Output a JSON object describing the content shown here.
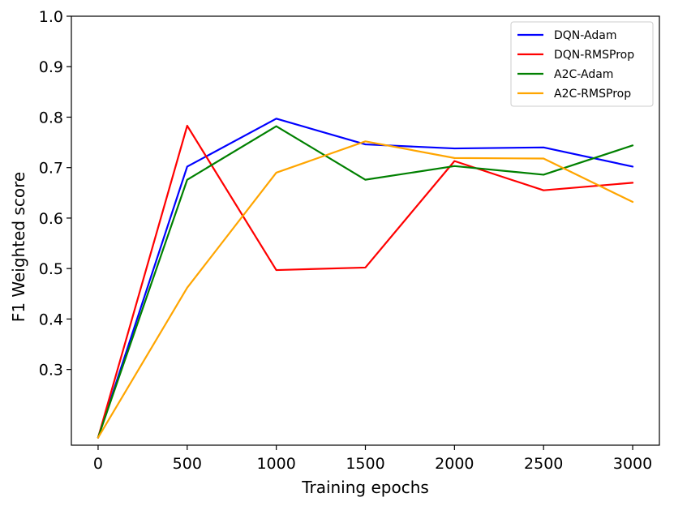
{
  "chart_data": {
    "type": "line",
    "xlabel": "Training epochs",
    "ylabel": "F1 Weighted score",
    "x": [
      0,
      500,
      1000,
      1500,
      2000,
      2500,
      3000
    ],
    "xlim": [
      -150,
      3150
    ],
    "ylim": [
      0.15,
      1.0
    ],
    "xticks": [
      0,
      500,
      1000,
      1500,
      2000,
      2500,
      3000
    ],
    "yticks": [
      0.3,
      0.4,
      0.5,
      0.6,
      0.7,
      0.8,
      0.9,
      1.0
    ],
    "xtick_labels": [
      "0",
      "500",
      "1000",
      "1500",
      "2000",
      "2500",
      "3000"
    ],
    "ytick_labels": [
      "0.3",
      "0.4",
      "0.5",
      "0.6",
      "0.7",
      "0.8",
      "0.9",
      "1.0"
    ],
    "grid": false,
    "legend_position": "top-right",
    "series": [
      {
        "name": "DQN-Adam",
        "color": "#0000ff",
        "values": [
          0.165,
          0.702,
          0.797,
          0.746,
          0.738,
          0.74,
          0.702
        ]
      },
      {
        "name": "DQN-RMSProp",
        "color": "#ff0000",
        "values": [
          0.165,
          0.783,
          0.497,
          0.502,
          0.713,
          0.655,
          0.67
        ]
      },
      {
        "name": "A2C-Adam",
        "color": "#008000",
        "values": [
          0.165,
          0.676,
          0.782,
          0.676,
          0.703,
          0.686,
          0.744
        ]
      },
      {
        "name": "A2C-RMSProp",
        "color": "#ffa500",
        "values": [
          0.165,
          0.462,
          0.69,
          0.752,
          0.719,
          0.718,
          0.632
        ]
      }
    ]
  }
}
